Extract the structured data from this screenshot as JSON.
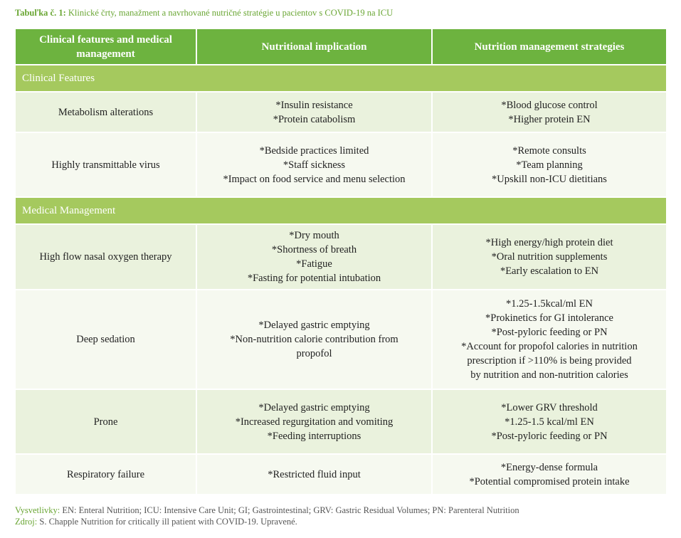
{
  "caption": {
    "lead": "Tabuľka č. 1:",
    "text": "Klinické črty, manažment a navrhované nutričné stratégie u pacientov s COVID-19 na ICU"
  },
  "table": {
    "headers": {
      "col1": "Clinical features and medical management",
      "col2": "Nutritional implication",
      "col3": "Nutrition management strategies"
    },
    "section_clinical": "Clinical Features",
    "section_medical": "Medical Management",
    "rows": [
      {
        "feature": "Metabolism alterations",
        "implication": [
          "*Insulin resistance",
          "*Protein catabolism"
        ],
        "strategies": [
          "*Blood glucose control",
          "*Higher protein EN"
        ]
      },
      {
        "feature": "Highly transmittable virus",
        "implication": [
          "*Bedside practices limited",
          "*Staff sickness",
          "*Impact on food service and menu selection"
        ],
        "strategies": [
          "*Remote consults",
          "*Team planning",
          "*Upskill non-ICU dietitians"
        ]
      },
      {
        "feature": "High flow nasal oxygen therapy",
        "implication": [
          "*Dry mouth",
          "*Shortness of breath",
          "*Fatigue",
          "*Fasting for potential intubation"
        ],
        "strategies": [
          "*High energy/high protein diet",
          "*Oral nutrition supplements",
          "*Early escalation to EN"
        ]
      },
      {
        "feature": "Deep sedation",
        "implication": [
          "*Delayed gastric emptying",
          "*Non-nutrition calorie contribution from",
          "propofol"
        ],
        "strategies": [
          "*1.25-1.5kcal/ml EN",
          "*Prokinetics for GI intolerance",
          "*Post-pyloric feeding or PN",
          "*Account for propofol calories in nutrition",
          "prescription if >110% is being provided",
          "by nutrition and non-nutrition calories"
        ]
      },
      {
        "feature": "Prone",
        "implication": [
          "*Delayed gastric emptying",
          "*Increased regurgitation and vomiting",
          "*Feeding interruptions"
        ],
        "strategies": [
          "*Lower GRV threshold",
          "*1.25-1.5 kcal/ml EN",
          "*Post-pyloric feeding or PN"
        ]
      },
      {
        "feature": "Respiratory failure",
        "implication": [
          "*Restricted fluid input"
        ],
        "strategies": [
          "*Energy-dense formula",
          "*Potential compromised protein intake"
        ]
      }
    ]
  },
  "footer": {
    "notes_label": "Vysvetlivky:",
    "notes_text": "EN: Enteral Nutrition; ICU: Intensive Care Unit; GI; Gastrointestinal; GRV: Gastric Residual Volumes; PN: Parenteral Nutrition",
    "source_label": "Zdroj:",
    "source_text": "S. Chapple Nutrition for critically ill patient with COVID-19. Upravené."
  }
}
